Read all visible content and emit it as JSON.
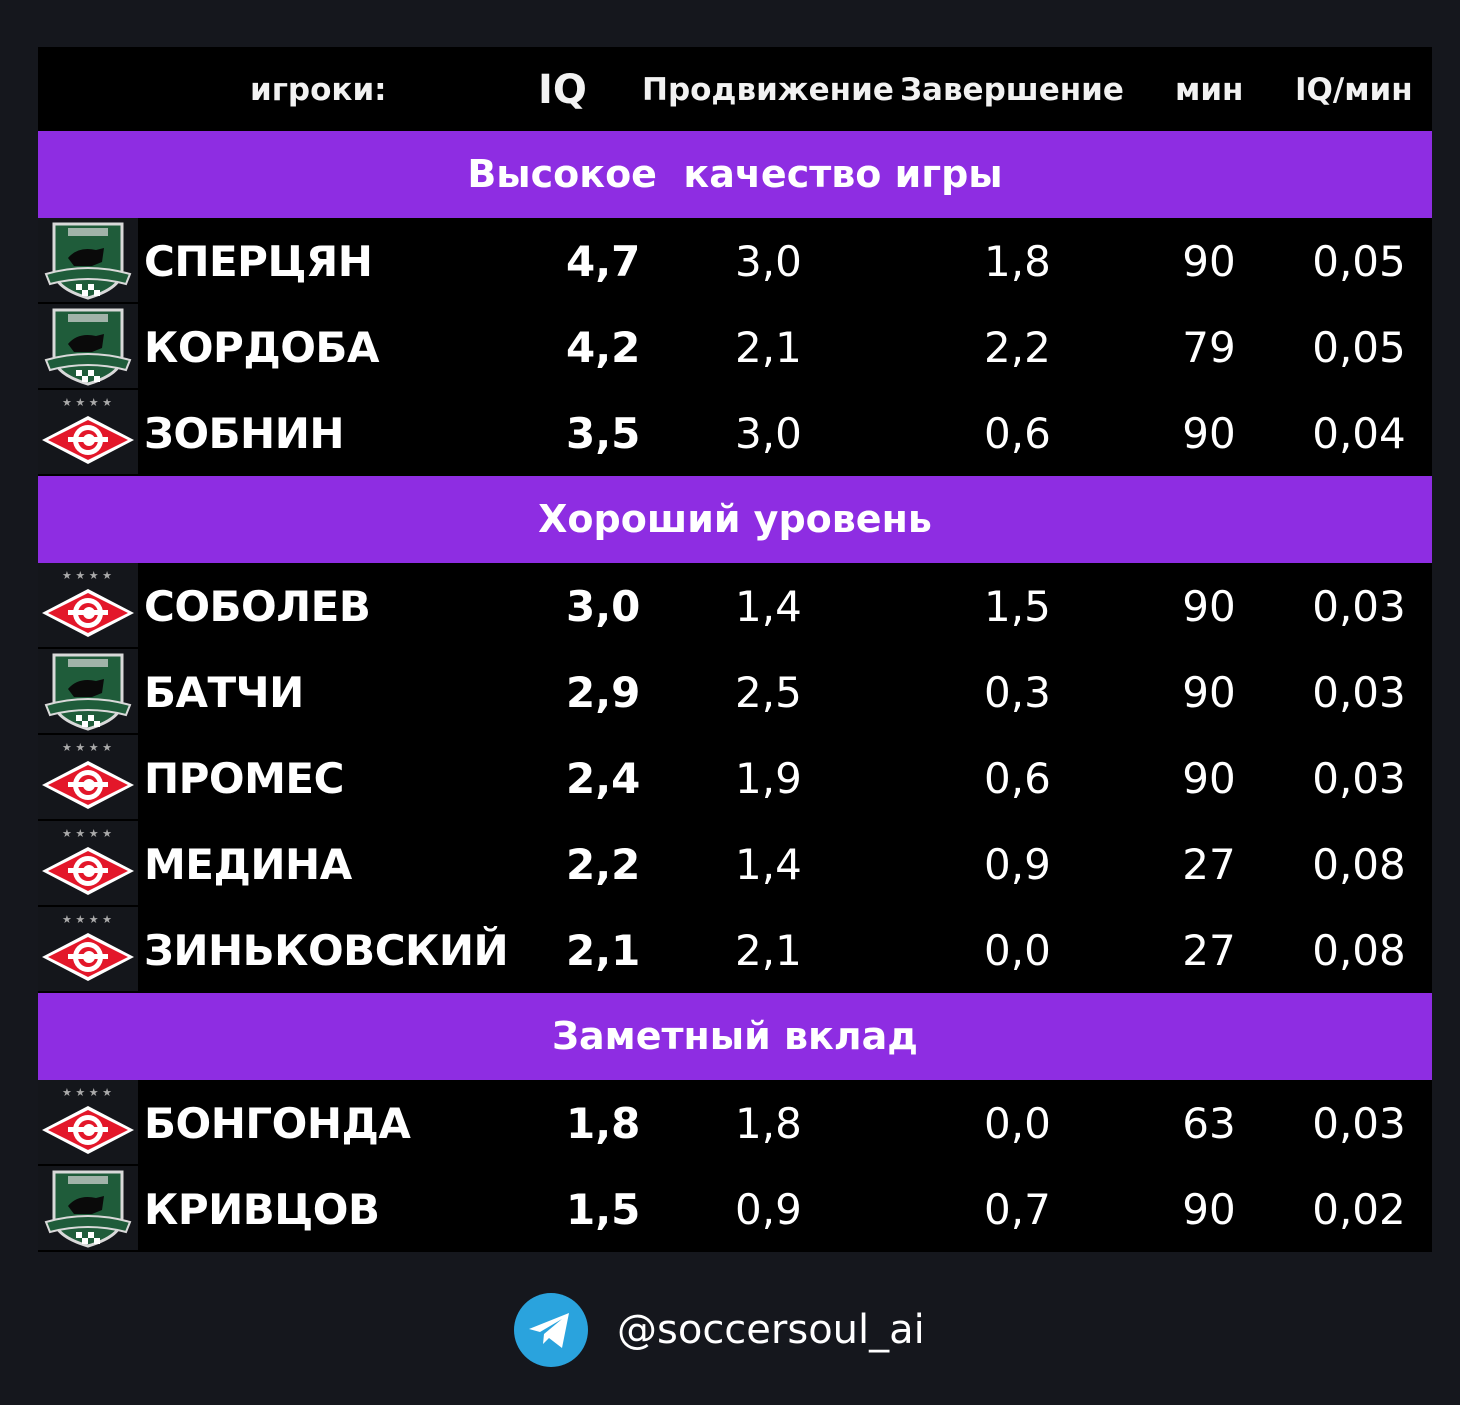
{
  "header": {
    "players": "игроки:",
    "iq": "IQ",
    "progression": "Продвижение",
    "finishing": "Завершение",
    "minutes": "мин",
    "iq_per_min": "IQ/мин"
  },
  "sections": [
    {
      "title": "Высокое  качество игры",
      "rows": [
        {
          "club": "krasnodar",
          "name": "СПЕРЦЯН",
          "iq": "4,7",
          "prog": "3,0",
          "fin": "1,8",
          "min": "90",
          "iqmin": "0,05"
        },
        {
          "club": "krasnodar",
          "name": "КОРДОБА",
          "iq": "4,2",
          "prog": "2,1",
          "fin": "2,2",
          "min": "79",
          "iqmin": "0,05"
        },
        {
          "club": "spartak",
          "name": "ЗОБНИН",
          "iq": "3,5",
          "prog": "3,0",
          "fin": "0,6",
          "min": "90",
          "iqmin": "0,04"
        }
      ]
    },
    {
      "title": "Хороший уровень",
      "rows": [
        {
          "club": "spartak",
          "name": "СОБОЛЕВ",
          "iq": "3,0",
          "prog": "1,4",
          "fin": "1,5",
          "min": "90",
          "iqmin": "0,03"
        },
        {
          "club": "krasnodar",
          "name": "БАТЧИ",
          "iq": "2,9",
          "prog": "2,5",
          "fin": "0,3",
          "min": "90",
          "iqmin": "0,03"
        },
        {
          "club": "spartak",
          "name": "ПРОМЕС",
          "iq": "2,4",
          "prog": "1,9",
          "fin": "0,6",
          "min": "90",
          "iqmin": "0,03"
        },
        {
          "club": "spartak",
          "name": "МЕДИНА",
          "iq": "2,2",
          "prog": "1,4",
          "fin": "0,9",
          "min": "27",
          "iqmin": "0,08"
        },
        {
          "club": "spartak",
          "name": "ЗИНЬКОВСКИЙ",
          "iq": "2,1",
          "prog": "2,1",
          "fin": "0,0",
          "min": "27",
          "iqmin": "0,08"
        }
      ]
    },
    {
      "title": "Заметный вклад",
      "rows": [
        {
          "club": "spartak",
          "name": "БОНГОНДА",
          "iq": "1,8",
          "prog": "1,8",
          "fin": "0,0",
          "min": "63",
          "iqmin": "0,03"
        },
        {
          "club": "krasnodar",
          "name": "КРИВЦОВ",
          "iq": "1,5",
          "prog": "0,9",
          "fin": "0,7",
          "min": "90",
          "iqmin": "0,02"
        }
      ]
    }
  ],
  "footer": {
    "icon": "telegram-icon",
    "handle": "@soccersoul_ai"
  },
  "colors": {
    "accent": "#8e2de2",
    "page_bg": "#15171d",
    "table_bg": "#000000",
    "telegram": "#2aa3dd",
    "spartak_red": "#e3172a",
    "krasnodar_green": "#1f5c3a"
  }
}
